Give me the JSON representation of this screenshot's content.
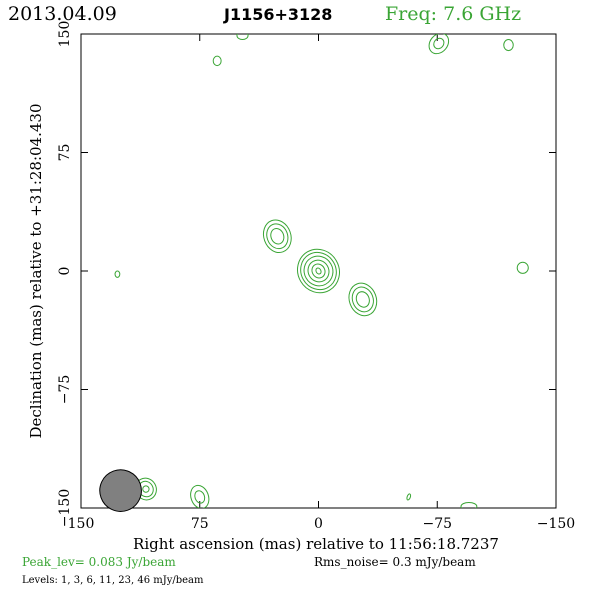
{
  "header": {
    "date": "2013.04.09",
    "source": "J1156+3128",
    "freq": "Freq: 7.6 GHz"
  },
  "footer": {
    "peak": "Peak_lev=  0.083 Jy/beam",
    "rms": "Rms_noise=  0.3 mJy/beam",
    "levels": "Levels:  1,  3,  6,  11,  23,  46 mJy/beam"
  },
  "colors": {
    "contour": "#3aa535",
    "frame": "#000000",
    "beam_fill": "#808080",
    "freq_text": "#3aa535"
  },
  "chart_data": {
    "type": "contour",
    "title": "J1156+3128",
    "xlabel": "Right ascension (mas) relative to 11:56:18.7237",
    "ylabel": "Declination (mas) relative to +31:28:04.430",
    "xlim": [
      150,
      -150
    ],
    "ylim": [
      -150,
      150
    ],
    "xticks": [
      150,
      75,
      0,
      -75,
      -150
    ],
    "yticks": [
      -150,
      -75,
      0,
      75,
      150
    ],
    "xtick_labels": [
      "150",
      "75",
      "0",
      "−75",
      "−150"
    ],
    "ytick_labels": [
      "−150",
      "−75",
      "0",
      "75",
      "150"
    ],
    "levels_mJy": [
      1,
      3,
      6,
      11,
      23,
      46
    ],
    "beam": {
      "x": 125,
      "y": -139,
      "major": 17,
      "minor": 15,
      "pa_deg": -20
    },
    "components": [
      {
        "name": "core",
        "x": 0,
        "y": 0,
        "rx": [
          1.5,
          4,
          6.5,
          9,
          11,
          13
        ],
        "ry": [
          2,
          4.5,
          7,
          9.5,
          12,
          14
        ],
        "angle": -30
      },
      {
        "name": "jet-ne",
        "x": 26,
        "y": 22,
        "rx": [
          4,
          6.5,
          8.5
        ],
        "ry": [
          5,
          8,
          10.5
        ],
        "angle": -20
      },
      {
        "name": "jet-sw",
        "x": -28,
        "y": -18,
        "rx": [
          4,
          6.5,
          8.5
        ],
        "ry": [
          5,
          8,
          10.5
        ],
        "angle": -20
      },
      {
        "name": "blob-e",
        "x": -129,
        "y": 2,
        "rx": [
          3.5
        ],
        "ry": [
          3.5
        ],
        "angle": 0
      },
      {
        "name": "blob-bl1",
        "x": 109,
        "y": -138,
        "rx": [
          2,
          4.5,
          6.5
        ],
        "ry": [
          2,
          5,
          7
        ],
        "angle": -30
      },
      {
        "name": "blob-bl2",
        "x": 75,
        "y": -143,
        "rx": [
          3,
          5.5
        ],
        "ry": [
          4,
          7.5
        ],
        "angle": -20
      },
      {
        "name": "blob-top1",
        "x": 64,
        "y": 133,
        "rx": [
          2.5
        ],
        "ry": [
          3
        ],
        "angle": 0
      },
      {
        "name": "blob-top2",
        "x": 48,
        "y": 149,
        "rx": [
          3.5
        ],
        "ry": [
          2.5
        ],
        "angle": 0
      },
      {
        "name": "blob-tr1",
        "x": -76,
        "y": 144,
        "rx": [
          3,
          5.5
        ],
        "ry": [
          3.5,
          7
        ],
        "angle": 40
      },
      {
        "name": "blob-tr2",
        "x": -120,
        "y": 143,
        "rx": [
          3
        ],
        "ry": [
          3.5
        ],
        "angle": 0
      },
      {
        "name": "blob-tiny1",
        "x": 127,
        "y": -2,
        "rx": [
          1.5
        ],
        "ry": [
          2
        ],
        "angle": 0
      },
      {
        "name": "blob-tiny2",
        "x": -57,
        "y": -143,
        "rx": [
          1
        ],
        "ry": [
          2
        ],
        "angle": 20
      },
      {
        "name": "blob-bottom",
        "x": -95,
        "y": -149,
        "rx": [
          5
        ],
        "ry": [
          2.5
        ],
        "angle": 0
      }
    ]
  }
}
